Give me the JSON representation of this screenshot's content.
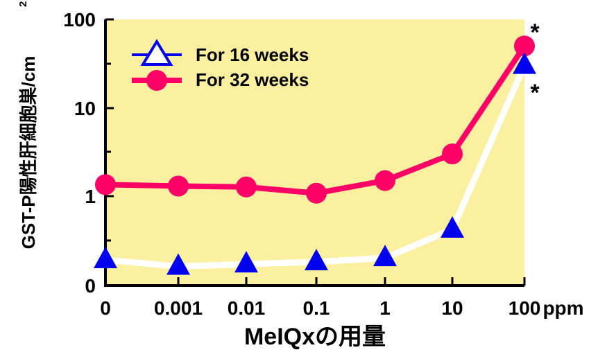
{
  "chart_data": {
    "type": "line",
    "ylabel": "GST-P陽性肝細胞巣/cm",
    "ylabel_superscript": "2",
    "xlabel": "MeIQxの用量",
    "x_unit": "ppm",
    "categories": [
      "0",
      "0.001",
      "0.01",
      "0.1",
      "1",
      "10",
      "100"
    ],
    "y_scale": "log",
    "y_ticks": [
      "100",
      "10",
      "1",
      "0"
    ],
    "plot_background": "#fbf0a0",
    "series": [
      {
        "name": "For 16 weeks",
        "marker": "triangle",
        "color": "#0000ee",
        "line_color": "#ffffff",
        "values": [
          0.19,
          0.16,
          0.17,
          0.18,
          0.2,
          0.42,
          30
        ]
      },
      {
        "name": "For 32 weeks",
        "marker": "circle",
        "color": "#ff0066",
        "line_color": "#ff0066",
        "values": [
          1.35,
          1.3,
          1.27,
          1.08,
          1.5,
          3.0,
          50
        ]
      }
    ],
    "annotations": [
      "*",
      "*"
    ]
  }
}
